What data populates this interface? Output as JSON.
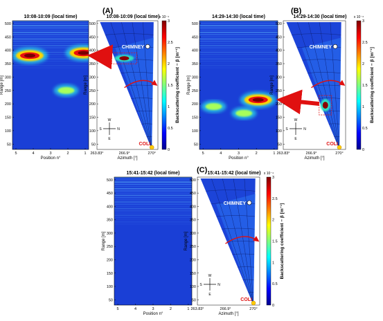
{
  "panels": [
    {
      "letter": "(A)",
      "left_title": "10:08-10:09 (local time)",
      "right_title": "10:08-10:09 (local time)",
      "chimney_label": "CHIMNEY",
      "coli_label": "COLI",
      "hotspot": {
        "position_n": 4.2,
        "range_m": 380,
        "sector_range_m": 370
      }
    },
    {
      "letter": "(B)",
      "left_title": "14:29-14:30 (local time)",
      "right_title": "14:29-14:30 (local time)",
      "chimney_label": "CHIMNEY",
      "coli_label": "COLI",
      "hotspot": {
        "position_n": 1.9,
        "range_m": 215,
        "sector_range_m": 195
      }
    },
    {
      "letter": "(C)",
      "left_title": "15:41-15:42 (local time)",
      "right_title": "15:41-15:42 (local time)",
      "chimney_label": "CHIMNEY",
      "coli_label": "COLI",
      "hotspot": null
    }
  ],
  "axes": {
    "range_label": "Range [m]",
    "position_label": "Position n°",
    "azimuth_label": "Azimuth [°]",
    "colorbar_label": "Backscattering coefficient − β [m⁻¹]",
    "colorbar_exponent": "x 10⁻⁴",
    "range_ticks": [
      "500",
      "450",
      "400",
      "350",
      "300",
      "250",
      "200",
      "150",
      "100",
      "50"
    ],
    "position_ticks": [
      "5",
      "4",
      "3",
      "2",
      "1"
    ],
    "azimuth_ticks": [
      "263.83°",
      "266.9°",
      "270°"
    ],
    "colorbar_ticks": [
      "3",
      "2.5",
      "2",
      "1.5",
      "1",
      "0.5",
      "0"
    ]
  },
  "compass": {
    "n": "N",
    "s": "S",
    "e": "E",
    "w": "W"
  },
  "chart_data": [
    {
      "type": "heatmap",
      "title": "10:08-10:09 (local time)",
      "xlabel": "Position n°",
      "ylabel": "Range [m]",
      "x_ticks": [
        5,
        4,
        3,
        2,
        1
      ],
      "ylim": [
        30,
        510
      ],
      "colorbar_range": [
        0,
        3
      ],
      "colorbar_unit": "x 10^-4 m^-1",
      "peaks": [
        {
          "position": 4.2,
          "range": 380,
          "value": 3
        },
        {
          "position": 1.1,
          "range": 390,
          "value": 3
        },
        {
          "position": 2.1,
          "range": 250,
          "value": 1.2
        }
      ]
    },
    {
      "type": "heatmap",
      "title": "14:29-14:30 (local time)",
      "xlabel": "Position n°",
      "ylabel": "Range [m]",
      "x_ticks": [
        5,
        4,
        3,
        2,
        1
      ],
      "ylim": [
        30,
        510
      ],
      "colorbar_range": [
        0,
        3
      ],
      "colorbar_unit": "x 10^-4 m^-1",
      "peaks": [
        {
          "position": 1.9,
          "range": 215,
          "value": 3
        },
        {
          "position": 2.7,
          "range": 165,
          "value": 2
        },
        {
          "position": 4.4,
          "range": 190,
          "value": 1.2
        }
      ]
    },
    {
      "type": "heatmap",
      "title": "15:41-15:42 (local time)",
      "xlabel": "Position n°",
      "ylabel": "Range [m]",
      "x_ticks": [
        5,
        4,
        3,
        2,
        1
      ],
      "ylim": [
        30,
        510
      ],
      "colorbar_range": [
        0,
        3
      ],
      "colorbar_unit": "x 10^-4 m^-1",
      "peaks": []
    }
  ]
}
